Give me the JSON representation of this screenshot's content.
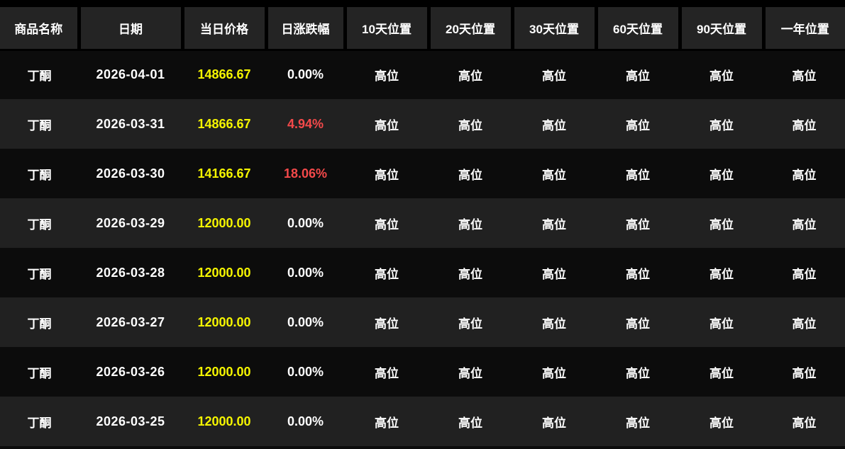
{
  "table": {
    "columns": [
      {
        "key": "product-name",
        "label": "商品名称"
      },
      {
        "key": "date",
        "label": "日期"
      },
      {
        "key": "day-price",
        "label": "当日价格"
      },
      {
        "key": "day-change",
        "label": "日涨跌幅"
      },
      {
        "key": "pos-10d",
        "label": "10天位置"
      },
      {
        "key": "pos-20d",
        "label": "20天位置"
      },
      {
        "key": "pos-30d",
        "label": "30天位置"
      },
      {
        "key": "pos-60d",
        "label": "60天位置"
      },
      {
        "key": "pos-90d",
        "label": "90天位置"
      },
      {
        "key": "pos-1y",
        "label": "一年位置"
      }
    ],
    "rows": [
      {
        "name": "丁酮",
        "date": "2026-04-01",
        "price": "14866.67",
        "change": "0.00%",
        "change_red": false,
        "positions": [
          "高位",
          "高位",
          "高位",
          "高位",
          "高位",
          "高位"
        ]
      },
      {
        "name": "丁酮",
        "date": "2026-03-31",
        "price": "14866.67",
        "change": "4.94%",
        "change_red": true,
        "positions": [
          "高位",
          "高位",
          "高位",
          "高位",
          "高位",
          "高位"
        ]
      },
      {
        "name": "丁酮",
        "date": "2026-03-30",
        "price": "14166.67",
        "change": "18.06%",
        "change_red": true,
        "positions": [
          "高位",
          "高位",
          "高位",
          "高位",
          "高位",
          "高位"
        ]
      },
      {
        "name": "丁酮",
        "date": "2026-03-29",
        "price": "12000.00",
        "change": "0.00%",
        "change_red": false,
        "positions": [
          "高位",
          "高位",
          "高位",
          "高位",
          "高位",
          "高位"
        ]
      },
      {
        "name": "丁酮",
        "date": "2026-03-28",
        "price": "12000.00",
        "change": "0.00%",
        "change_red": false,
        "positions": [
          "高位",
          "高位",
          "高位",
          "高位",
          "高位",
          "高位"
        ]
      },
      {
        "name": "丁酮",
        "date": "2026-03-27",
        "price": "12000.00",
        "change": "0.00%",
        "change_red": false,
        "positions": [
          "高位",
          "高位",
          "高位",
          "高位",
          "高位",
          "高位"
        ]
      },
      {
        "name": "丁酮",
        "date": "2026-03-26",
        "price": "12000.00",
        "change": "0.00%",
        "change_red": false,
        "positions": [
          "高位",
          "高位",
          "高位",
          "高位",
          "高位",
          "高位"
        ]
      },
      {
        "name": "丁酮",
        "date": "2026-03-25",
        "price": "12000.00",
        "change": "0.00%",
        "change_red": false,
        "positions": [
          "高位",
          "高位",
          "高位",
          "高位",
          "高位",
          "高位"
        ]
      }
    ]
  },
  "colors": {
    "background": "#000000",
    "header_cell_bg": "#242424",
    "row_odd_bg": "#0c0c0c",
    "row_even_bg": "#212121",
    "text_white": "#ffffff",
    "price_yellow": "#f5f500",
    "change_up_red": "#f4494a"
  }
}
